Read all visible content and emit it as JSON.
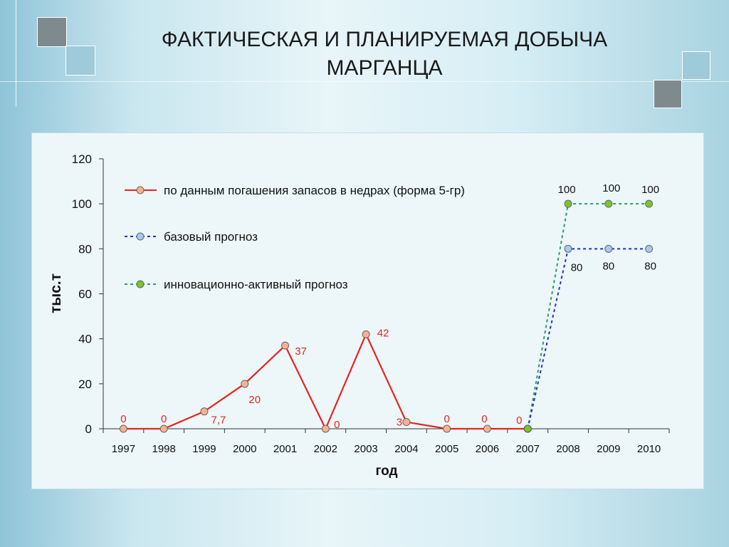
{
  "slide": {
    "title_line1": "ФАКТИЧЕСКАЯ И ПЛАНИРУЕМАЯ ДОБЫЧА",
    "title_line2": "МАРГАНЦА"
  },
  "chart_data": {
    "type": "line",
    "title": "",
    "xlabel": "год",
    "ylabel": "тыс.т",
    "ylim": [
      0,
      120
    ],
    "yticks": [
      0,
      20,
      40,
      60,
      80,
      100,
      120
    ],
    "x": [
      "1997",
      "1998",
      "1999",
      "2000",
      "2001",
      "2002",
      "2003",
      "2004",
      "2005",
      "2006",
      "2007",
      "2008",
      "2009",
      "2010"
    ],
    "grid": false,
    "legend_position": "top-left",
    "series": [
      {
        "name": "по данным погашения запасов в недрах (форма 5-гр)",
        "color": "#e8231f",
        "marker_color": "#f6b28f",
        "dash": "solid",
        "x": [
          "1997",
          "1998",
          "1999",
          "2000",
          "2001",
          "2002",
          "2003",
          "2004",
          "2005",
          "2006",
          "2007"
        ],
        "values": [
          0,
          0,
          7.7,
          20,
          37,
          0,
          42,
          3,
          0,
          0,
          0
        ],
        "labels": [
          "0",
          "0",
          "7,7",
          "20",
          "37",
          "0",
          "42",
          "3",
          "0",
          "0",
          "0"
        ]
      },
      {
        "name": "базовый прогноз",
        "color": "#1f2fd0",
        "marker_color": "#a9c9f0",
        "dash": "dotted",
        "x": [
          "2007",
          "2008",
          "2009",
          "2010"
        ],
        "values": [
          0,
          80,
          80,
          80
        ],
        "labels": [
          "",
          "80",
          "80",
          "80"
        ]
      },
      {
        "name": "инновационно-активный прогноз",
        "color": "#2e9a6a",
        "marker_color": "#7cc42b",
        "dash": "dotted",
        "x": [
          "2007",
          "2008",
          "2009",
          "2010"
        ],
        "values": [
          0,
          100,
          100,
          100
        ],
        "labels": [
          "",
          "100",
          "100",
          "100"
        ]
      }
    ]
  }
}
